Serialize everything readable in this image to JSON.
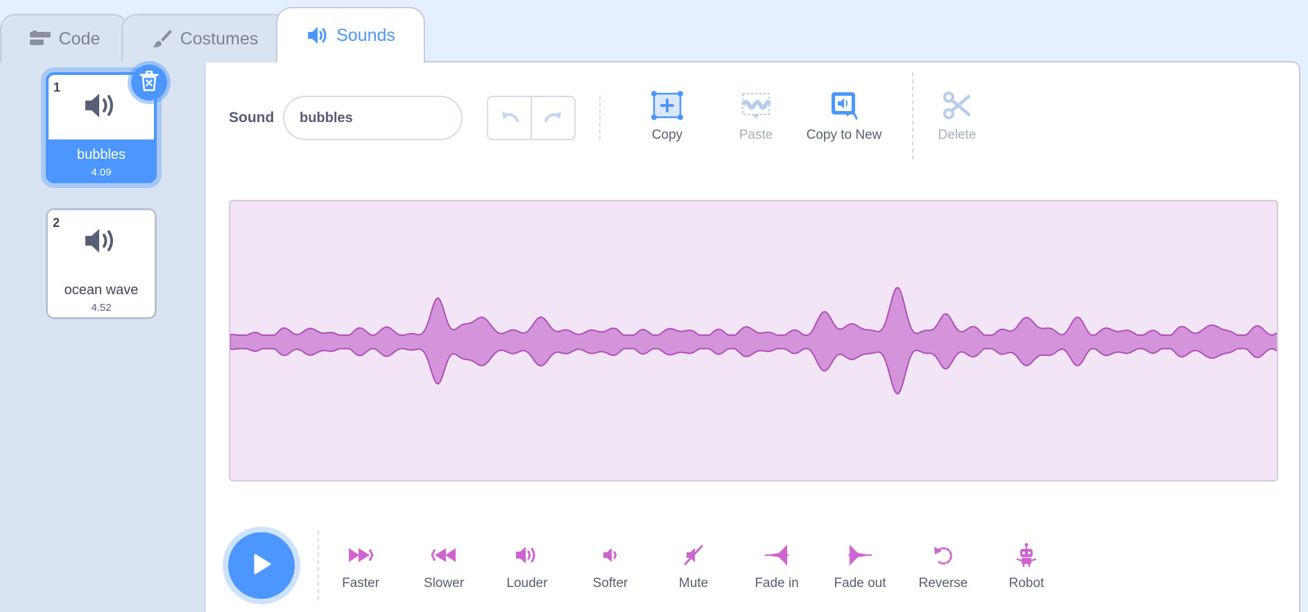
{
  "tabs": {
    "code": "Code",
    "costumes": "Costumes",
    "sounds": "Sounds"
  },
  "sounds": [
    {
      "num": "1",
      "name": "bubbles",
      "duration": "4.09",
      "selected": true
    },
    {
      "num": "2",
      "name": "ocean wave",
      "duration": "4.52",
      "selected": false
    }
  ],
  "editor": {
    "sound_label": "Sound",
    "sound_name": "bubbles",
    "tools": {
      "copy": "Copy",
      "paste": "Paste",
      "copy_to_new": "Copy to New",
      "delete": "Delete"
    },
    "effects": {
      "faster": "Faster",
      "slower": "Slower",
      "louder": "Louder",
      "softer": "Softer",
      "mute": "Mute",
      "fade_in": "Fade in",
      "fade_out": "Fade out",
      "reverse": "Reverse",
      "robot": "Robot"
    }
  },
  "colors": {
    "accent": "#4c97ff",
    "sound_purple": "#cf63cf",
    "wave_fill": "#d394d9",
    "wave_stroke": "#b24ebb",
    "wave_bg": "#f2e6f6"
  }
}
